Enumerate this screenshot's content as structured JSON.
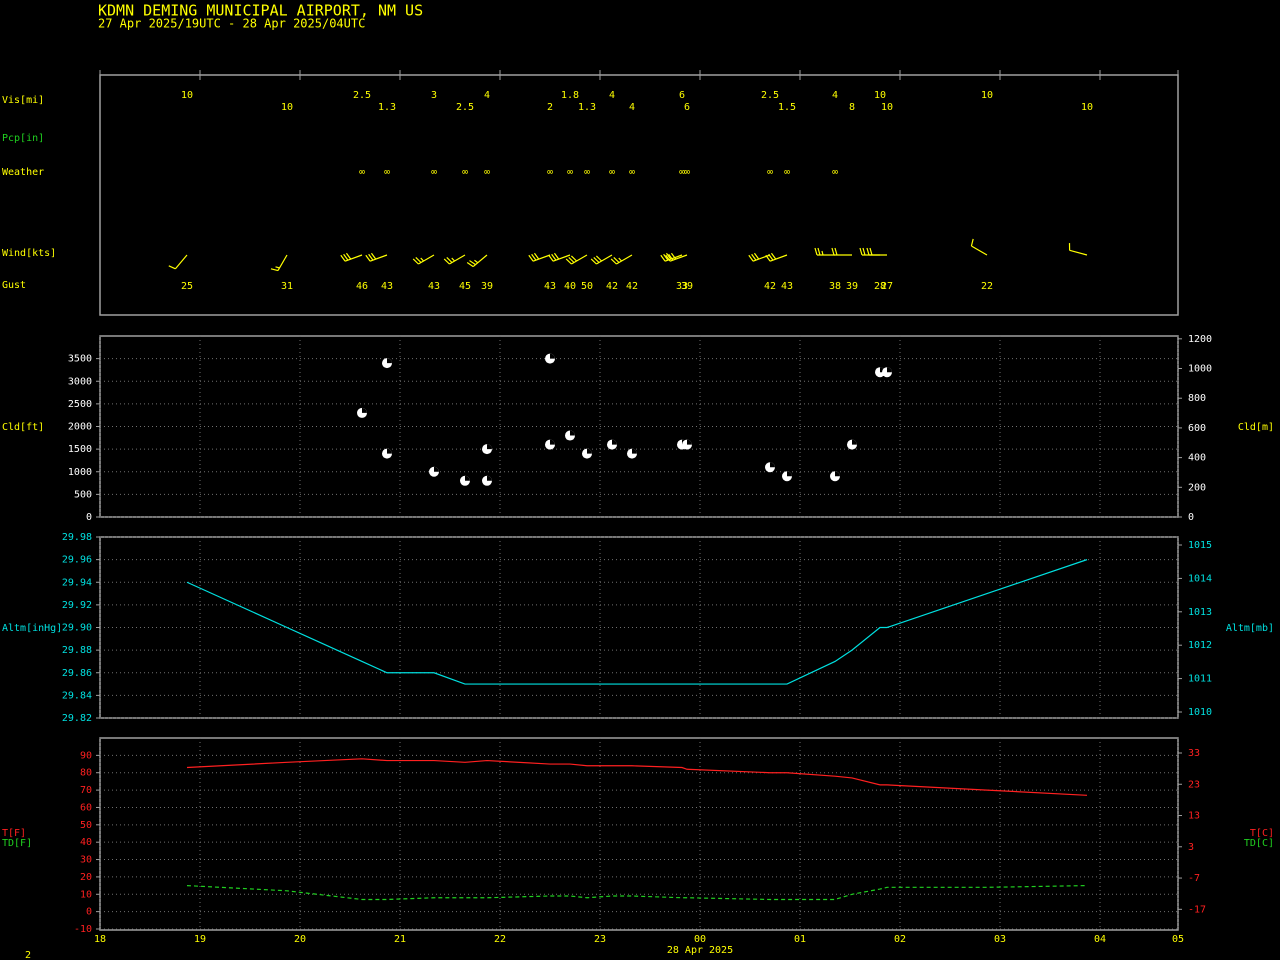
{
  "header": {
    "title": "KDMN  DEMING MUNICIPAL AIRPORT, NM US",
    "subtitle": "27 Apr 2025/19UTC - 28 Apr 2025/04UTC"
  },
  "page_number": 2,
  "chart_data": [
    {
      "type": "station_rows",
      "row_labels": {
        "vis": "Vis[mi]",
        "pcp": "Pcp[in]",
        "weather": "Weather",
        "wind": "Wind[kts]",
        "gust": "Gust"
      },
      "x": [
        18.87,
        19.87,
        20.62,
        20.87,
        21.34,
        21.65,
        21.87,
        22.5,
        22.7,
        22.87,
        23.12,
        23.32,
        23.82,
        23.87,
        24.7,
        24.87,
        25.35,
        25.52,
        25.8,
        25.87,
        26.87,
        27.87
      ],
      "vis": [
        10,
        10,
        2.5,
        1.3,
        3,
        2.5,
        4,
        2,
        1.8,
        1.3,
        4,
        4,
        6,
        6,
        2.5,
        1.5,
        4,
        8,
        10,
        10,
        10,
        10
      ],
      "weather": [
        null,
        null,
        "∞",
        "∞",
        "∞",
        "∞",
        "∞",
        "∞",
        "∞",
        "∞",
        "∞",
        "∞",
        "∞",
        "∞",
        "∞",
        "∞",
        "∞",
        null,
        null,
        null,
        null,
        null
      ],
      "wind_dir": [
        220,
        210,
        250,
        250,
        240,
        240,
        230,
        250,
        250,
        240,
        240,
        240,
        250,
        250,
        250,
        250,
        270,
        270,
        270,
        270,
        300,
        285
      ],
      "wind_speed": [
        10,
        15,
        30,
        30,
        25,
        25,
        25,
        30,
        30,
        30,
        30,
        25,
        30,
        30,
        30,
        30,
        25,
        20,
        20,
        20,
        10,
        10
      ],
      "gust": [
        25,
        31,
        46,
        43,
        43,
        45,
        39,
        43,
        40,
        50,
        42,
        42,
        33,
        39,
        42,
        43,
        38,
        39,
        28,
        27,
        22,
        null
      ],
      "color": "#ffff00"
    },
    {
      "type": "scatter",
      "ylabel": "Cld[ft]",
      "y2label": "Cld[m]",
      "x": [
        20.62,
        20.87,
        20.87,
        21.34,
        21.65,
        21.87,
        21.87,
        22.5,
        22.5,
        22.7,
        22.87,
        23.12,
        23.32,
        23.82,
        23.87,
        24.7,
        24.87,
        25.35,
        25.52,
        25.8,
        25.87
      ],
      "y": [
        2300,
        3400,
        1400,
        1000,
        800,
        1500,
        800,
        3500,
        1600,
        1800,
        1400,
        1600,
        1400,
        1600,
        1600,
        1100,
        900,
        900,
        1600,
        3200,
        3200
      ],
      "ylim": [
        0,
        4000
      ],
      "yticks": [
        0,
        500,
        1000,
        1500,
        2000,
        2500,
        3000,
        3500
      ],
      "y2lim": [
        0,
        1219
      ],
      "y2ticks": [
        0,
        200,
        400,
        600,
        800,
        1000,
        1200
      ],
      "color": "#ffffff",
      "grid": true
    },
    {
      "type": "line",
      "ylabel": "Altm[inHg]",
      "y2label": "Altm[mb]",
      "x": [
        18.87,
        19.87,
        20.62,
        20.87,
        21.34,
        21.65,
        21.87,
        22.5,
        22.7,
        22.87,
        23.12,
        23.32,
        23.82,
        23.87,
        24.7,
        24.87,
        25.35,
        25.52,
        25.8,
        25.87,
        26.87,
        27.87
      ],
      "series": [
        {
          "color": "#00e0e0",
          "line_style": "solid",
          "values": [
            29.94,
            29.9,
            29.87,
            29.86,
            29.86,
            29.85,
            29.85,
            29.85,
            29.85,
            29.85,
            29.85,
            29.85,
            29.85,
            29.85,
            29.85,
            29.85,
            29.87,
            29.88,
            29.9,
            29.9,
            29.93,
            29.96
          ]
        }
      ],
      "ylim": [
        29.82,
        29.98
      ],
      "yticks": [
        29.82,
        29.84,
        29.86,
        29.88,
        {
          "value": 29.9,
          "label": "29.90"
        },
        29.92,
        29.94,
        29.96,
        29.98
      ],
      "y2lim": [
        1009.82,
        1015.24
      ],
      "y2ticks": [
        1010,
        1011,
        1012,
        1013,
        1014,
        1015
      ],
      "tick_color": "#00e0e0",
      "grid": true
    },
    {
      "type": "line",
      "ylabels": [
        "T[F]",
        "TD[F]"
      ],
      "y2labels": [
        "T[C]",
        "TD[C]"
      ],
      "x": [
        18.87,
        19.87,
        20.62,
        20.87,
        21.34,
        21.65,
        21.87,
        22.5,
        22.7,
        22.87,
        23.12,
        23.32,
        23.82,
        23.87,
        24.7,
        24.87,
        25.35,
        25.52,
        25.8,
        25.87,
        26.87,
        27.87
      ],
      "series": [
        {
          "color": "#ff2020",
          "line_style": "solid",
          "values": [
            83,
            86,
            88,
            87,
            87,
            86,
            87,
            85,
            85,
            84,
            84,
            84,
            83,
            82,
            80,
            80,
            78,
            77,
            73,
            73,
            70,
            67
          ]
        },
        {
          "color": "#20d020",
          "line_style": "dashed",
          "values": [
            15,
            12,
            7,
            7,
            8,
            8,
            8,
            9,
            9,
            8,
            9,
            9,
            8,
            8,
            7,
            7,
            7,
            10,
            13,
            14,
            14,
            15
          ]
        }
      ],
      "ylim": [
        -10,
        100
      ],
      "yticks": [
        -10,
        0,
        10,
        20,
        30,
        40,
        50,
        60,
        70,
        80,
        90
      ],
      "y2lim": [
        -23.3,
        37.8
      ],
      "y2ticks": [
        -17,
        -7,
        3,
        13,
        23,
        33
      ],
      "xlim": [
        18,
        28.78
      ],
      "xticks": [
        18,
        19,
        20,
        21,
        22,
        23,
        {
          "value": 24,
          "label": "00"
        },
        {
          "value": 25,
          "label": "01"
        },
        {
          "value": 26,
          "label": "02"
        },
        {
          "value": 27,
          "label": "03"
        },
        {
          "value": 28,
          "label": "04"
        },
        {
          "value": 28.78,
          "label": "05"
        }
      ],
      "xlabel": "28 Apr 2025",
      "tick_color": "#ff2020",
      "grid": true
    }
  ]
}
